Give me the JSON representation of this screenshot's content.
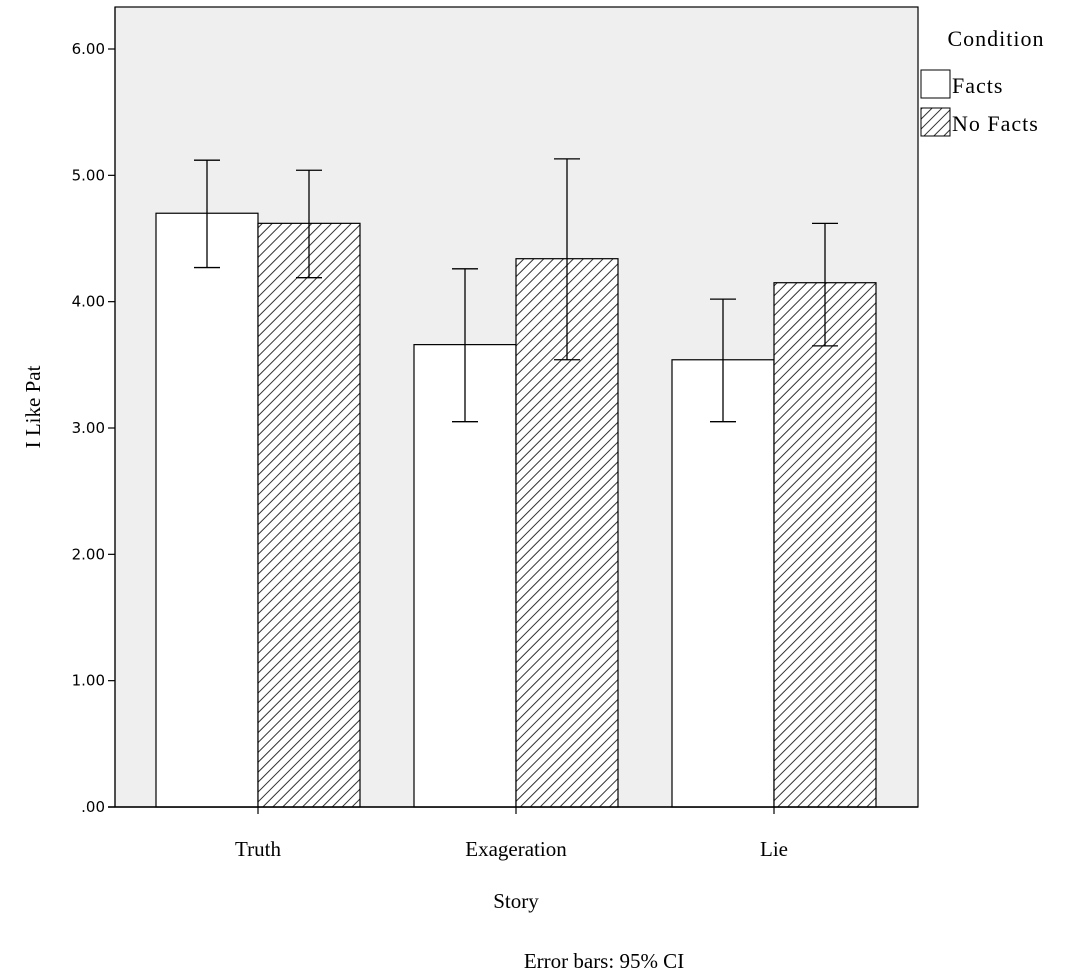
{
  "chart_data": {
    "type": "bar",
    "categories": [
      "Truth",
      "Exageration",
      "Lie"
    ],
    "series": [
      {
        "name": "Facts",
        "values": [
          4.7,
          3.66,
          3.54
        ],
        "ci_low": [
          4.27,
          3.05,
          3.05
        ],
        "ci_high": [
          5.12,
          4.26,
          4.02
        ],
        "fill": "#ffffff"
      },
      {
        "name": "No Facts",
        "values": [
          4.62,
          4.34,
          4.15
        ],
        "ci_low": [
          4.19,
          3.54,
          3.65
        ],
        "ci_high": [
          5.04,
          5.13,
          4.62
        ],
        "fill": "hatched"
      }
    ],
    "xlabel": "Story",
    "ylabel": "I Like Pat",
    "ylim": [
      0,
      6.3
    ],
    "yticks": [
      ".00",
      "1.00",
      "2.00",
      "3.00",
      "4.00",
      "5.00",
      "6.00"
    ],
    "legend_title": "Condition",
    "legend_position": "top-right outside plot",
    "footnote": "Error bars: 95% CI",
    "grid": false,
    "colors": {
      "plot_background": "#efefef",
      "bar_stroke": "#000000",
      "axis": "#000000"
    }
  }
}
